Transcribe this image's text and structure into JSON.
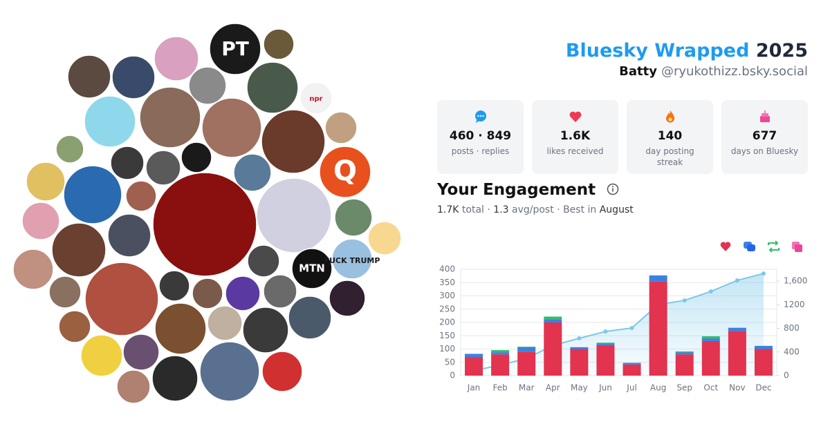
{
  "header": {
    "title": "Bluesky Wrapped",
    "year": "2025",
    "name": "Batty",
    "handle": "@ryukothizz.bsky.social"
  },
  "avatar_labels": [
    "PT",
    "npr",
    "Q",
    "MTN",
    "FUCK TRUMP"
  ],
  "stats": [
    {
      "value": "460 · 849",
      "label": "posts · replies"
    },
    {
      "value": "1.6K",
      "label": "likes received"
    },
    {
      "value": "140",
      "label": "day posting streak"
    },
    {
      "value": "677",
      "label": "days on Bluesky"
    }
  ],
  "engagement": {
    "title": "Your Engagement",
    "total": "1.7K",
    "total_label": "total",
    "separator": "·",
    "avg": "1.3",
    "avg_label": "avg/post",
    "best_label": "Best in",
    "best": "August"
  },
  "chart_data": {
    "type": "bar",
    "categories": [
      "Jan",
      "Feb",
      "Mar",
      "Apr",
      "May",
      "Jun",
      "Jul",
      "Aug",
      "Sep",
      "Oct",
      "Nov",
      "Dec"
    ],
    "series": [
      {
        "color": "#e2334f",
        "values": [
          70,
          80,
          90,
          200,
          100,
          115,
          42,
          355,
          80,
          130,
          168,
          100
        ]
      },
      {
        "color": "#3a82e0",
        "values": [
          12,
          8,
          17,
          12,
          7,
          6,
          6,
          22,
          8,
          10,
          12,
          12
        ]
      },
      {
        "color": "#2fbf6a",
        "values": [
          0,
          8,
          2,
          10,
          0,
          3,
          0,
          0,
          3,
          8,
          0,
          0
        ]
      },
      {
        "color": "#e8489c",
        "values": [
          0,
          0,
          0,
          0,
          0,
          0,
          0,
          0,
          0,
          0,
          0,
          0
        ]
      },
      {
        "color": "#7cc8e8",
        "axis": "y2",
        "values": [
          83,
          180,
          290,
          510,
          631,
          747,
          806,
          1203,
          1273,
          1425,
          1612,
          1729
        ]
      }
    ],
    "ylim": [
      0,
      400
    ],
    "yticks": [
      0,
      50,
      100,
      150,
      200,
      250,
      300,
      350,
      400
    ],
    "y2lim": [
      0,
      1800
    ],
    "y2ticks": [
      0,
      400,
      800,
      1200,
      {
        "value": 1600,
        "label": "1,600"
      }
    ],
    "grid": true
  }
}
